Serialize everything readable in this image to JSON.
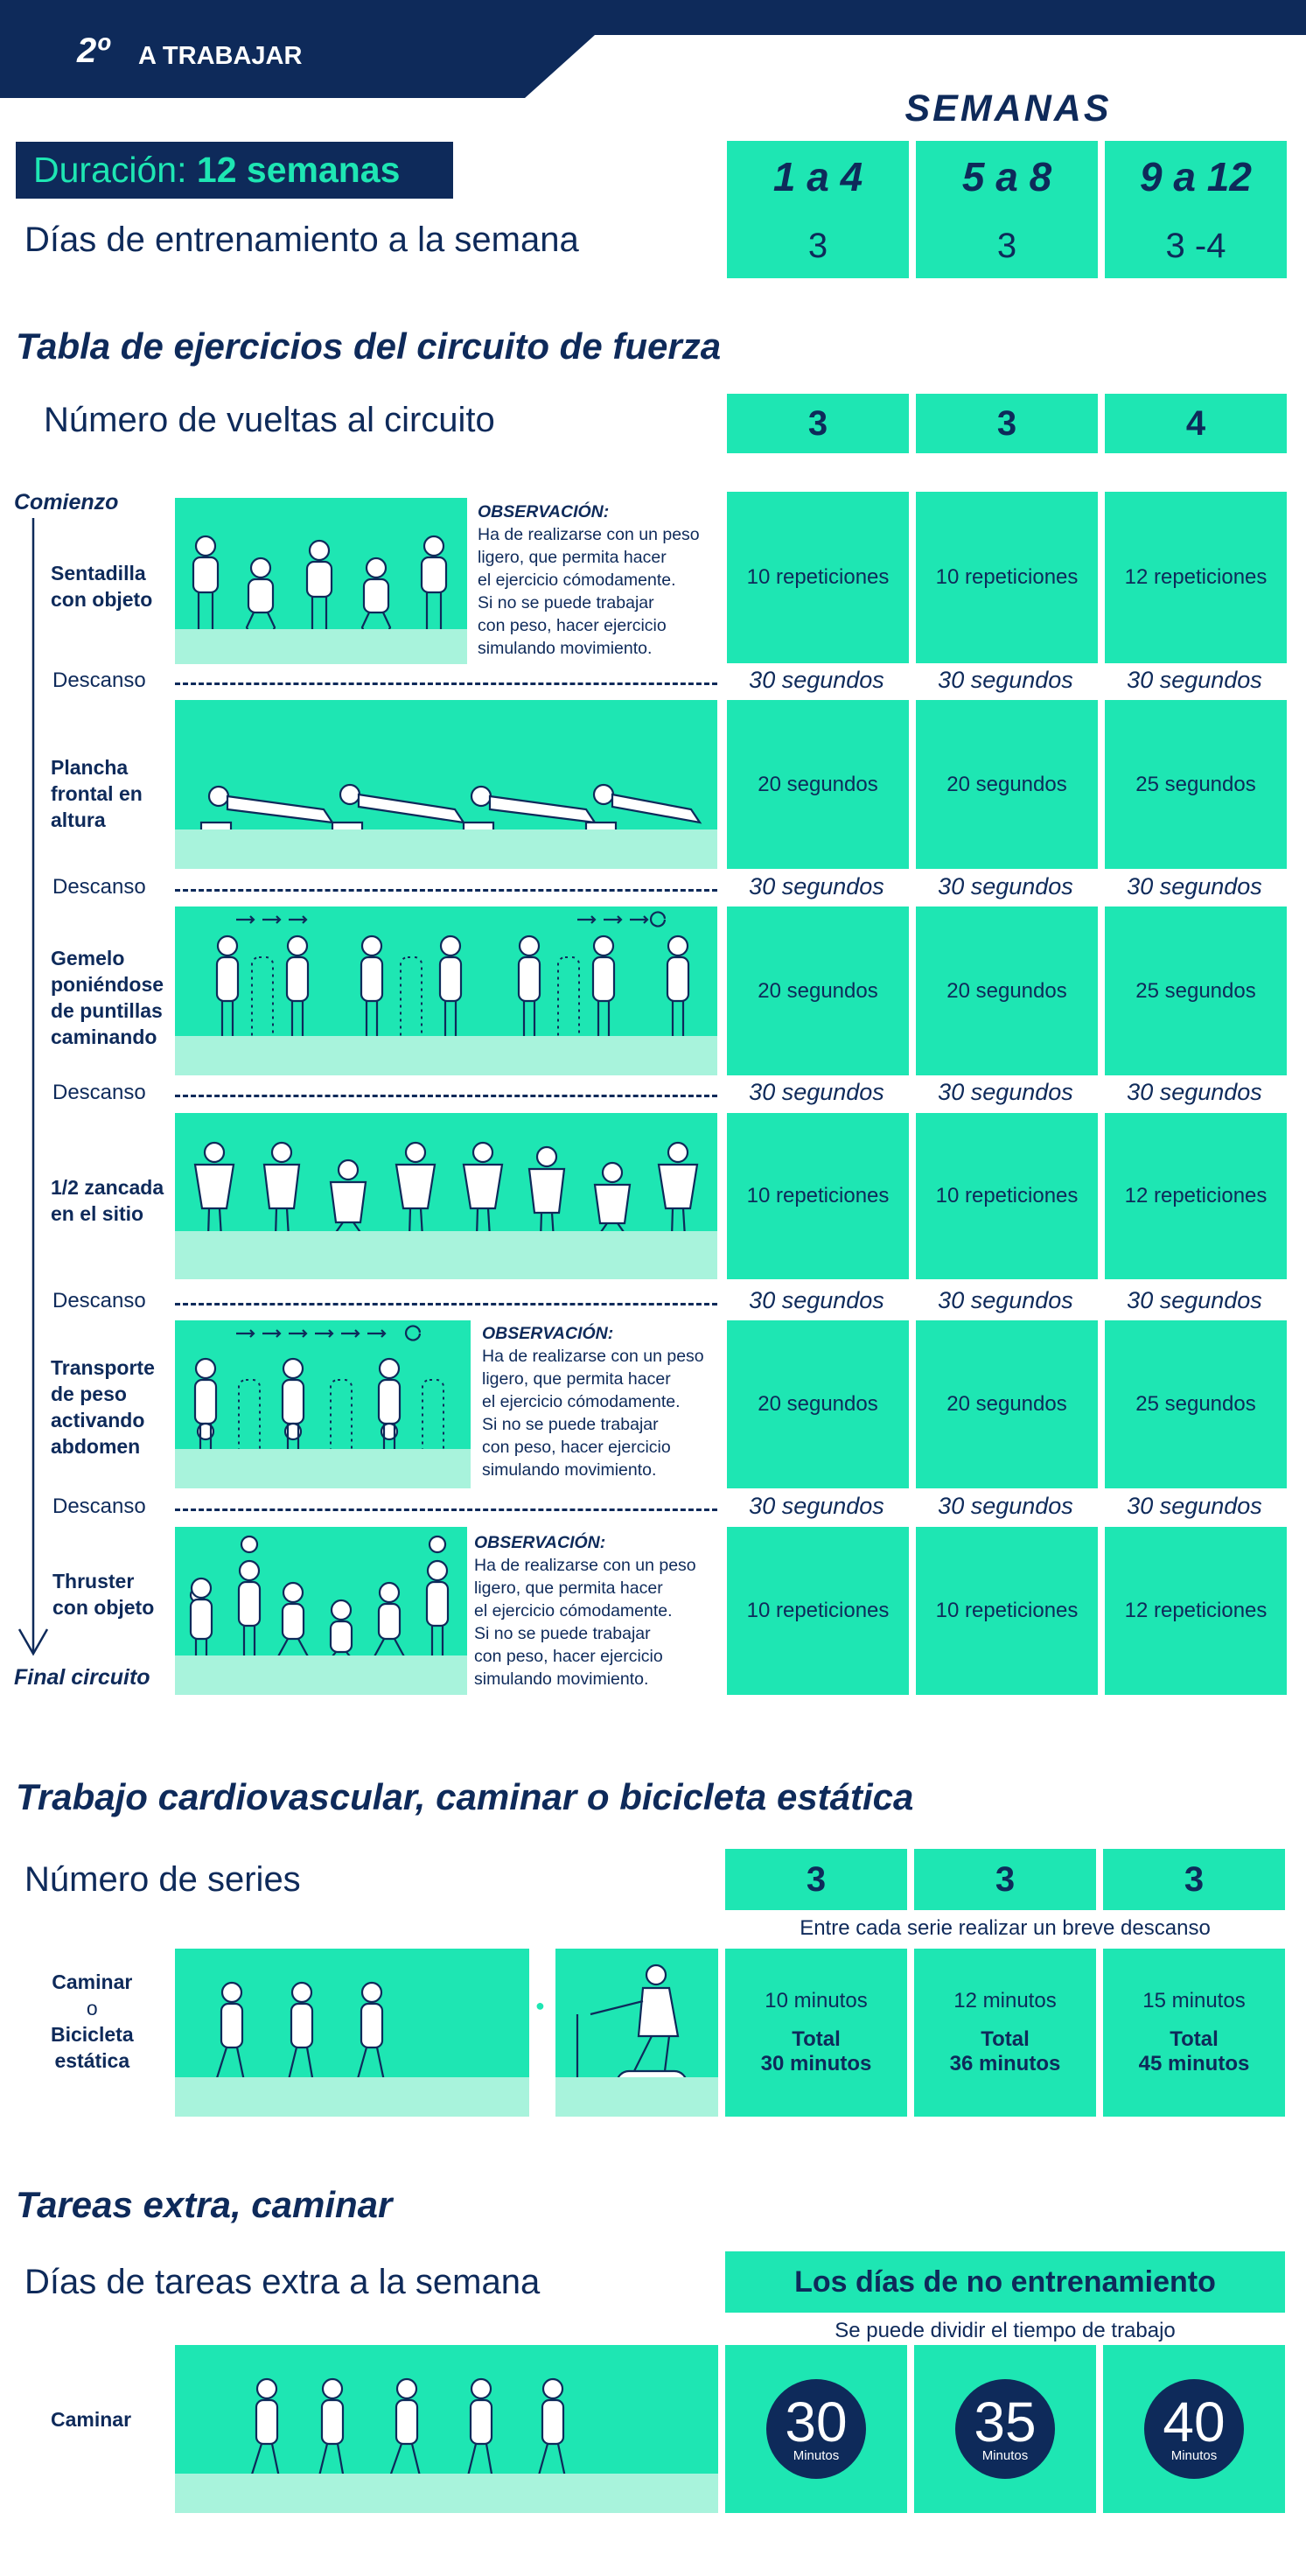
{
  "header": {
    "number": "2º",
    "title": "A TRABAJAR"
  },
  "weeks": {
    "heading": "SEMANAS",
    "cols": [
      "1 a 4",
      "5 a 8",
      "9 a 12"
    ]
  },
  "duration": {
    "label": "Duración:",
    "value": "12 semanas"
  },
  "training_days": {
    "label": "Días de entrenamiento a la semana",
    "values": [
      "3",
      "3",
      "3 -4"
    ]
  },
  "circuit": {
    "title": "Tabla de ejercicios del circuito de fuerza",
    "laps_label": "Número de vueltas al circuito",
    "laps": [
      "3",
      "3",
      "4"
    ],
    "start_label": "Comienzo",
    "end_label": "Final circuito",
    "rest_label": "Descanso",
    "rest_value": "30 segundos",
    "observation": {
      "title": "OBSERVACIÓN:",
      "lines": [
        "Ha de realizarse con un peso",
        "ligero, que permita hacer",
        "el ejercicio cómodamente.",
        "Si no se puede trabajar",
        "con peso, hacer ejercicio",
        "simulando movimiento."
      ]
    },
    "exercises": [
      {
        "name": [
          "Sentadilla",
          "con objeto"
        ],
        "values": [
          "10 repeticiones",
          "10 repeticiones",
          "12 repeticiones"
        ]
      },
      {
        "name": [
          "Plancha",
          "frontal en",
          "altura"
        ],
        "values": [
          "20 segundos",
          "20 segundos",
          "25 segundos"
        ]
      },
      {
        "name": [
          "Gemelo",
          "poniéndose",
          "de puntillas",
          "caminando"
        ],
        "values": [
          "20 segundos",
          "20 segundos",
          "25 segundos"
        ]
      },
      {
        "name": [
          "1/2 zancada",
          "en el sitio"
        ],
        "values": [
          "10 repeticiones",
          "10 repeticiones",
          "12 repeticiones"
        ]
      },
      {
        "name": [
          "Transporte",
          "de peso",
          "activando",
          "abdomen"
        ],
        "values": [
          "20 segundos",
          "20 segundos",
          "25 segundos"
        ]
      },
      {
        "name": [
          "Thruster",
          "con objeto"
        ],
        "values": [
          "10 repeticiones",
          "10 repeticiones",
          "12 repeticiones"
        ]
      }
    ]
  },
  "cardio": {
    "title": "Trabajo cardiovascular, caminar o bicicleta estática",
    "series_label": "Número de series",
    "series": [
      "3",
      "3",
      "3"
    ],
    "note": "Entre cada serie realizar un breve descanso",
    "activity": {
      "walk": "Caminar",
      "or": "o",
      "bike": [
        "Bicicleta",
        "estática"
      ]
    },
    "cols": [
      {
        "per": "10 minutos",
        "total_label": "Total",
        "total": "30 minutos"
      },
      {
        "per": "12 minutos",
        "total_label": "Total",
        "total": "36 minutos"
      },
      {
        "per": "15 minutos",
        "total_label": "Total",
        "total": "45 minutos"
      }
    ]
  },
  "extra": {
    "title": "Tareas extra, caminar",
    "days_label": "Días de tareas extra a la semana",
    "days_value": "Los días de no entrenamiento",
    "note": "Se puede dividir el tiempo de trabajo",
    "activity": "Caminar",
    "minutes": [
      "30",
      "35",
      "40"
    ],
    "unit": "Minutos"
  },
  "colors": {
    "navy": "#0e2a5a",
    "mint": "#1ee6b3",
    "light_mint": "#a8f3dc"
  }
}
